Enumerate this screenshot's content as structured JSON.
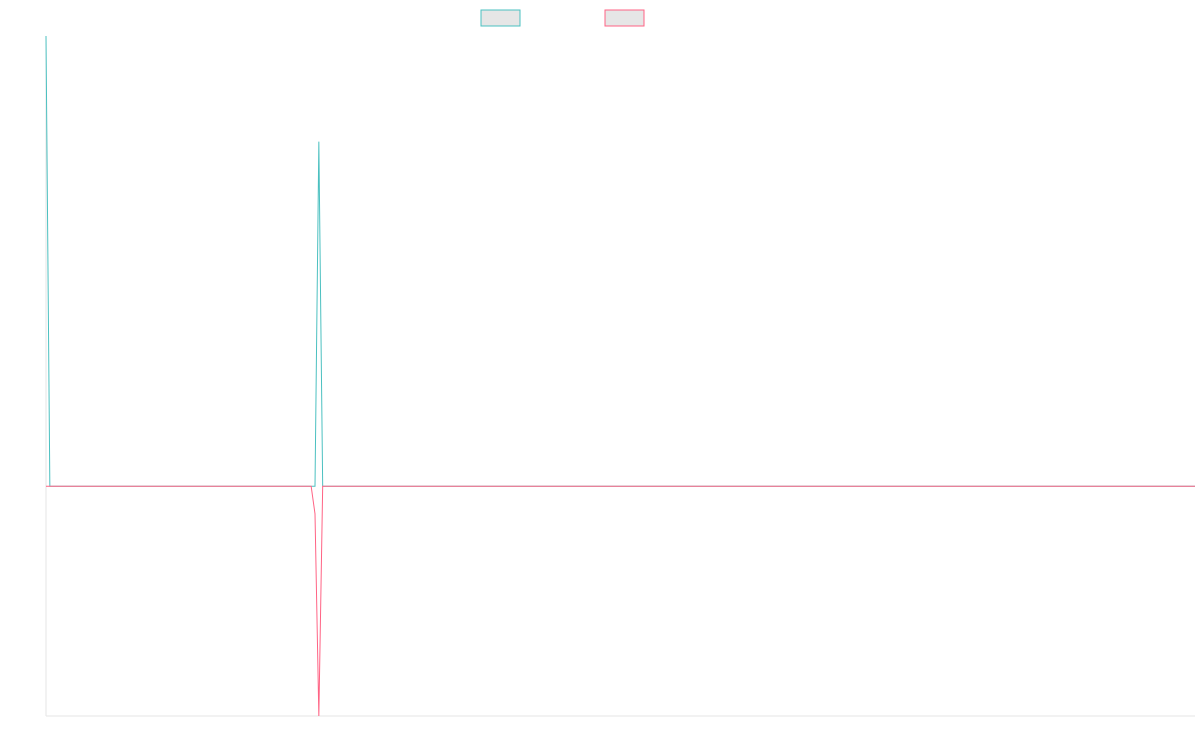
{
  "chart_data": {
    "type": "line",
    "title": "",
    "xlabel": "",
    "ylabel": "",
    "legend_position": "top-center",
    "grid": false,
    "point_count": 300,
    "ylim": [
      -1,
      1.96
    ],
    "series": [
      {
        "name": "",
        "color": "#4bc0c0",
        "fill": "#e6e6e6",
        "spikes": [
          {
            "index": 0,
            "value": 1.96
          },
          {
            "index": 71,
            "value": 1.5
          }
        ],
        "baseline": 0
      },
      {
        "name": "",
        "color": "#ff6384",
        "fill": "#e6e6e6",
        "spikes": [
          {
            "index": 0,
            "value": 0
          },
          {
            "index": 70,
            "value": -0.12
          },
          {
            "index": 71,
            "value": -1
          }
        ],
        "baseline": 0
      }
    ]
  }
}
